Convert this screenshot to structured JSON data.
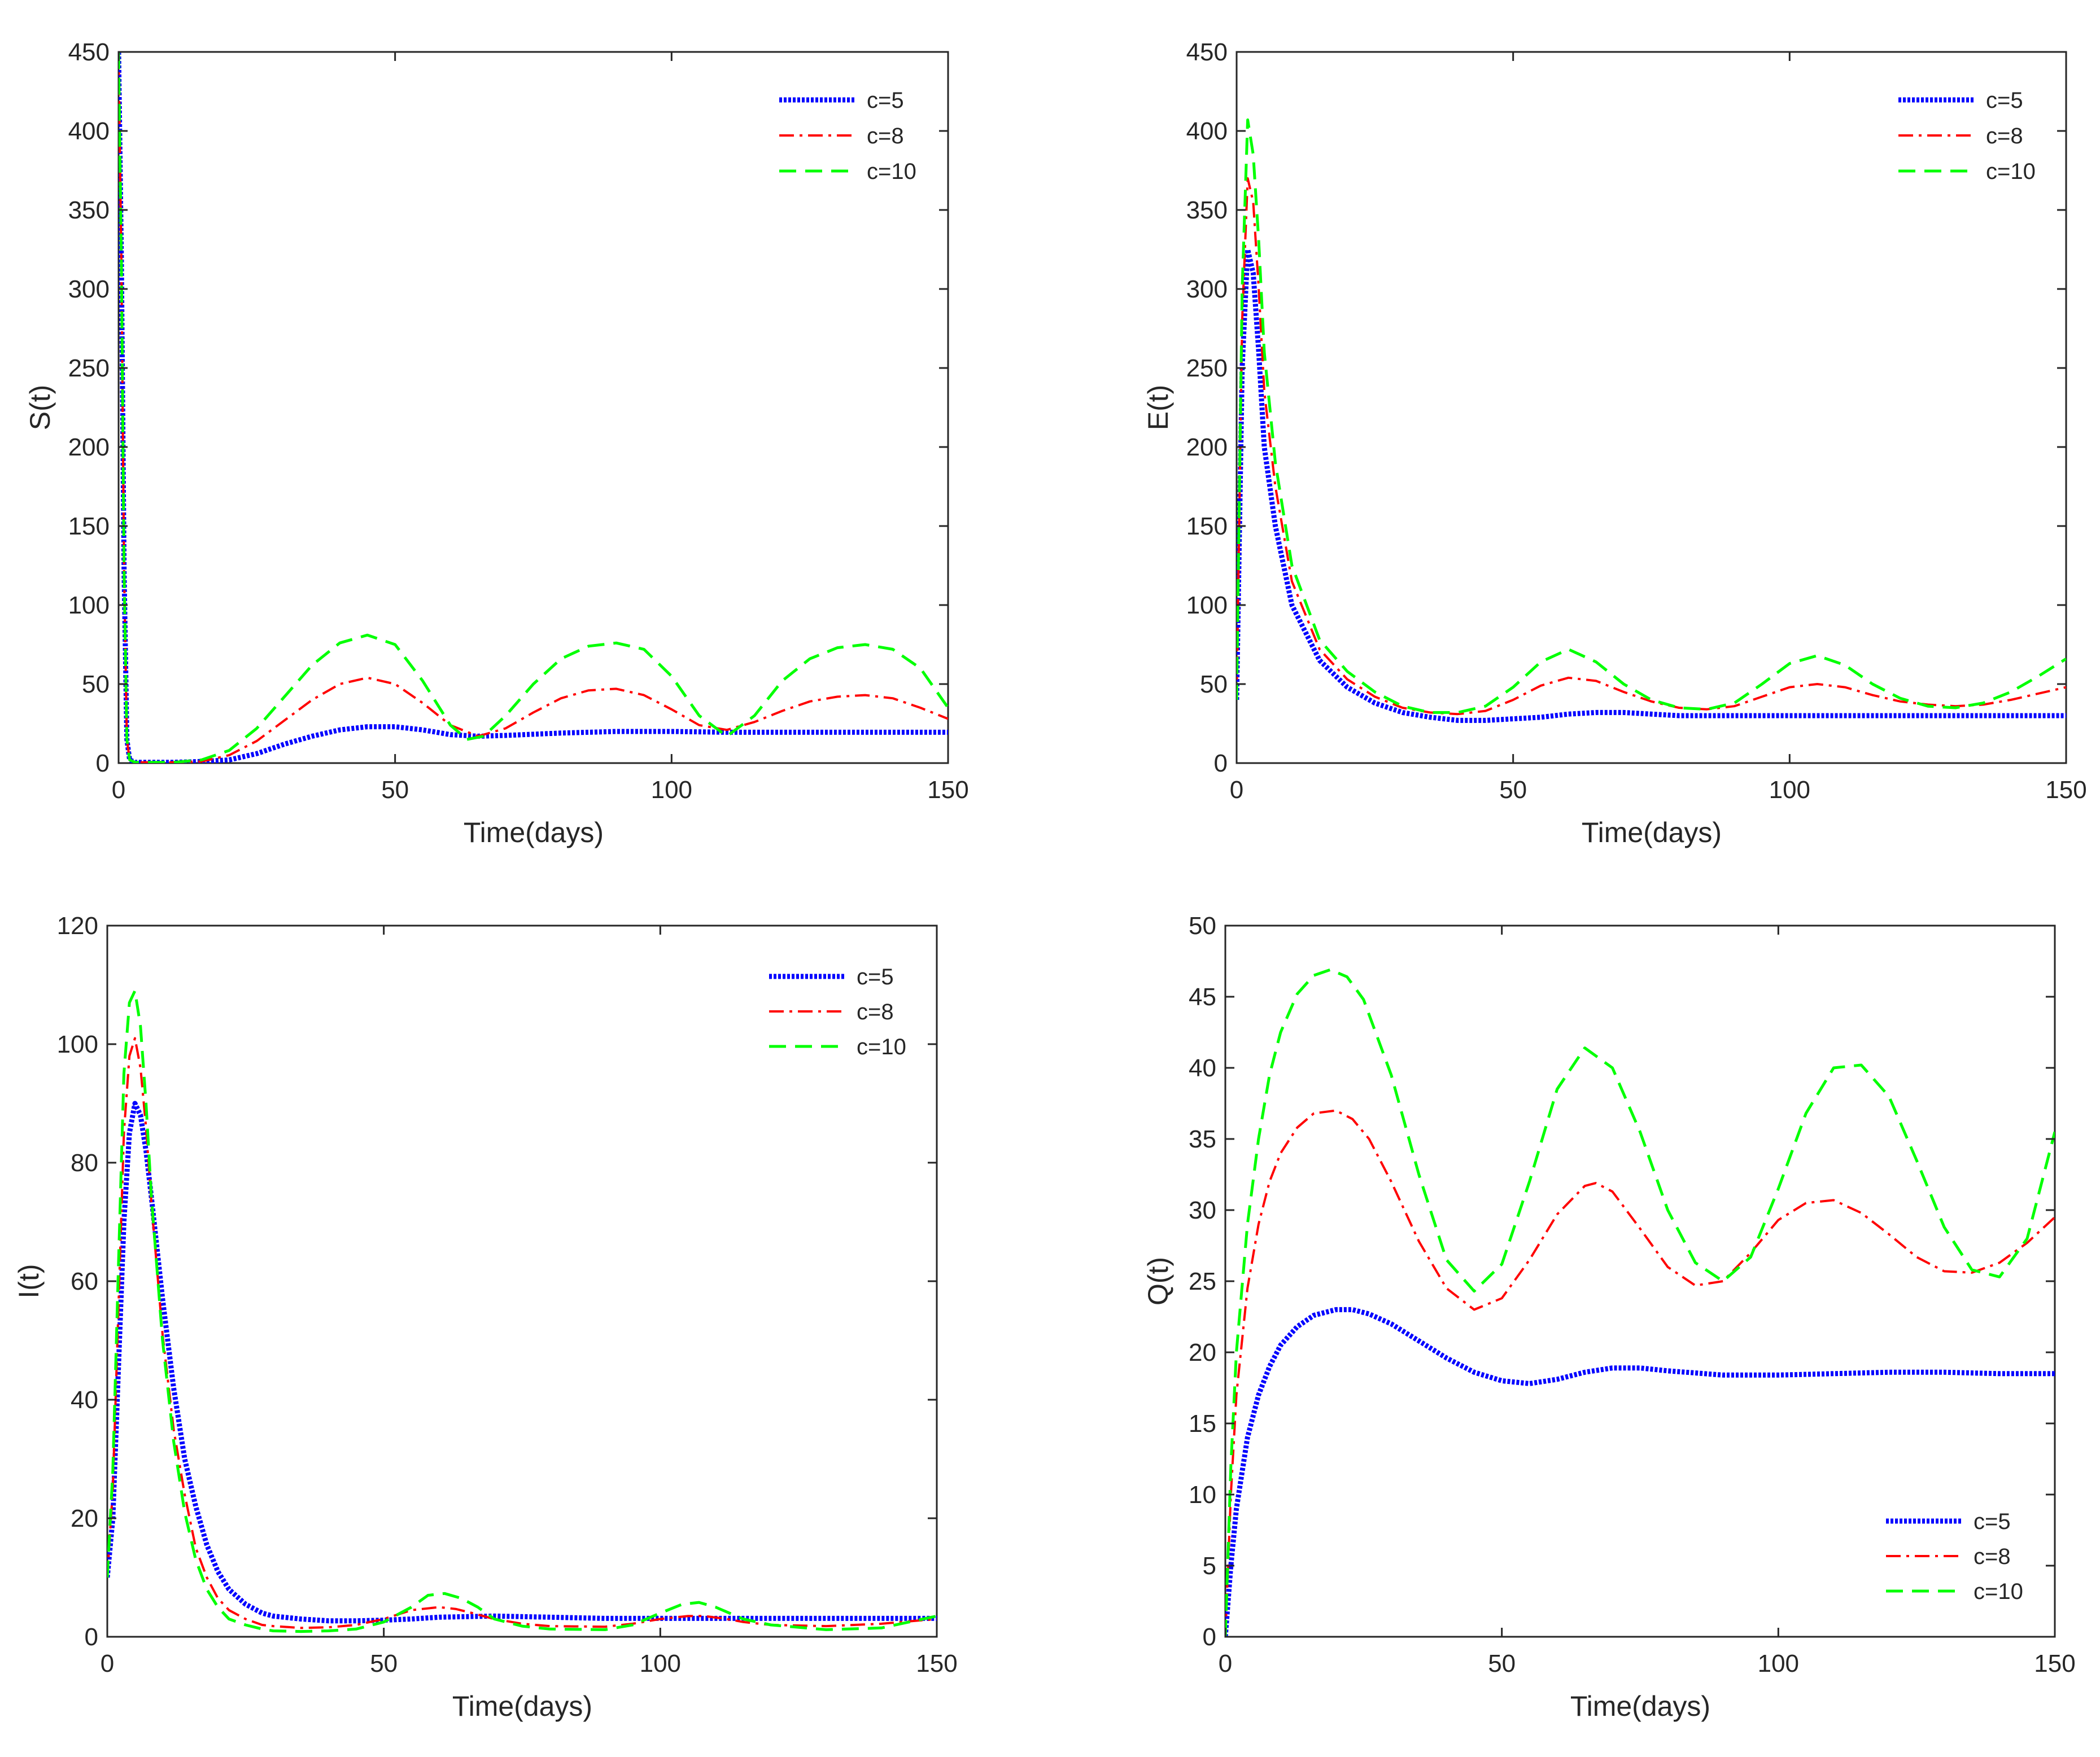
{
  "chart_data": [
    {
      "type": "line",
      "panel": "top-left",
      "xlabel": "Time(days)",
      "ylabel": "S(t)",
      "xlim": [
        0,
        150
      ],
      "ylim": [
        0,
        450
      ],
      "xticks": [
        0,
        50,
        100,
        150
      ],
      "yticks": [
        0,
        50,
        100,
        150,
        200,
        250,
        300,
        350,
        400,
        450
      ],
      "legend_position": "top-right",
      "series": [
        {
          "name": "c=5",
          "color": "#0000ff",
          "style": "dotted",
          "x": [
            0,
            0.5,
            1,
            1.5,
            2,
            3,
            5,
            10,
            15,
            20,
            25,
            30,
            35,
            40,
            45,
            50,
            55,
            60,
            65,
            70,
            80,
            90,
            100,
            110,
            120,
            130,
            140,
            150
          ],
          "y": [
            450,
            320,
            120,
            15,
            2,
            0.5,
            0.5,
            0.5,
            1,
            2,
            6,
            12,
            17,
            21,
            23,
            23,
            21,
            18,
            17,
            17.5,
            19,
            20,
            20,
            19.5,
            19.5,
            19.5,
            19.5,
            19.5
          ]
        },
        {
          "name": "c=8",
          "color": "#ff0000",
          "style": "dashdot",
          "x": [
            0,
            0.5,
            1,
            1.5,
            2,
            3,
            5,
            10,
            15,
            20,
            25,
            30,
            35,
            40,
            45,
            50,
            55,
            60,
            65,
            70,
            75,
            80,
            85,
            90,
            95,
            100,
            105,
            110,
            115,
            120,
            125,
            130,
            135,
            140,
            145,
            150
          ],
          "y": [
            450,
            320,
            120,
            15,
            2,
            0.5,
            0.5,
            0.5,
            1,
            5,
            14,
            27,
            40,
            50,
            54,
            50,
            38,
            24,
            17,
            22,
            32,
            41,
            46,
            47,
            43,
            34,
            24,
            21,
            26,
            33,
            39,
            42,
            43,
            41,
            35,
            28
          ]
        },
        {
          "name": "c=10",
          "color": "#00ff00",
          "style": "dashed",
          "x": [
            0,
            0.5,
            1,
            1.5,
            2,
            3,
            5,
            10,
            15,
            20,
            25,
            30,
            35,
            40,
            45,
            50,
            55,
            60,
            63,
            66,
            70,
            75,
            80,
            85,
            90,
            95,
            100,
            105,
            110,
            115,
            120,
            125,
            130,
            135,
            140,
            145,
            150
          ],
          "y": [
            450,
            320,
            120,
            15,
            2,
            0.5,
            0.5,
            0.5,
            2,
            8,
            22,
            42,
            62,
            76,
            81,
            75,
            52,
            24,
            15,
            17,
            30,
            50,
            66,
            74,
            76,
            72,
            55,
            30,
            17,
            30,
            52,
            66,
            73,
            75,
            72,
            60,
            35
          ]
        }
      ]
    },
    {
      "type": "line",
      "panel": "top-right",
      "xlabel": "Time(days)",
      "ylabel": "E(t)",
      "xlim": [
        0,
        150
      ],
      "ylim": [
        0,
        450
      ],
      "xticks": [
        0,
        50,
        100,
        150
      ],
      "yticks": [
        0,
        50,
        100,
        150,
        200,
        250,
        300,
        350,
        400,
        450
      ],
      "legend_position": "top-right",
      "series": [
        {
          "name": "c=5",
          "color": "#0000ff",
          "style": "dotted",
          "x": [
            0,
            1,
            2,
            3,
            4,
            5,
            7,
            10,
            15,
            20,
            25,
            30,
            35,
            40,
            45,
            50,
            55,
            60,
            65,
            70,
            80,
            90,
            100,
            110,
            120,
            130,
            140,
            150
          ],
          "y": [
            40,
            250,
            325,
            310,
            260,
            200,
            150,
            100,
            65,
            48,
            38,
            32,
            29,
            27,
            27,
            28,
            29,
            31,
            32,
            32,
            30,
            30,
            30,
            30,
            30,
            30,
            30,
            30
          ]
        },
        {
          "name": "c=8",
          "color": "#ff0000",
          "style": "dashdot",
          "x": [
            0,
            1,
            2,
            3,
            4,
            5,
            7,
            10,
            15,
            20,
            25,
            30,
            35,
            40,
            45,
            50,
            55,
            60,
            65,
            70,
            75,
            80,
            85,
            90,
            95,
            100,
            105,
            110,
            115,
            120,
            125,
            130,
            135,
            140,
            145,
            150
          ],
          "y": [
            40,
            280,
            370,
            355,
            300,
            235,
            175,
            115,
            72,
            53,
            42,
            35,
            32,
            31,
            33,
            40,
            49,
            54,
            52,
            45,
            39,
            35,
            34,
            36,
            42,
            48,
            50,
            48,
            43,
            39,
            37,
            36,
            37,
            40,
            44,
            48
          ]
        },
        {
          "name": "c=10",
          "color": "#00ff00",
          "style": "dashed",
          "x": [
            0,
            1,
            2,
            3,
            4,
            5,
            7,
            10,
            15,
            20,
            25,
            30,
            35,
            40,
            45,
            50,
            55,
            60,
            65,
            70,
            75,
            80,
            85,
            90,
            95,
            100,
            105,
            110,
            115,
            120,
            125,
            130,
            135,
            140,
            145,
            150
          ],
          "y": [
            40,
            300,
            407,
            385,
            330,
            260,
            190,
            125,
            78,
            58,
            45,
            36,
            32,
            32,
            36,
            48,
            64,
            72,
            64,
            50,
            40,
            35,
            34,
            38,
            50,
            63,
            68,
            62,
            50,
            41,
            36,
            35,
            38,
            45,
            55,
            66
          ]
        }
      ]
    },
    {
      "type": "line",
      "panel": "bottom-left",
      "xlabel": "Time(days)",
      "ylabel": "I(t)",
      "xlim": [
        0,
        150
      ],
      "ylim": [
        0,
        120
      ],
      "xticks": [
        0,
        50,
        100,
        150
      ],
      "yticks": [
        0,
        20,
        40,
        60,
        80,
        100,
        120
      ],
      "legend_position": "top-right",
      "series": [
        {
          "name": "c=5",
          "color": "#0000ff",
          "style": "dotted",
          "x": [
            0,
            1,
            2,
            3,
            4,
            5,
            6,
            7,
            8,
            10,
            12,
            14,
            16,
            18,
            20,
            22,
            25,
            28,
            30,
            35,
            40,
            45,
            50,
            55,
            60,
            70,
            80,
            90,
            100,
            110,
            120,
            130,
            140,
            150
          ],
          "y": [
            10,
            20,
            45,
            70,
            85,
            90,
            88,
            82,
            74,
            57,
            42,
            30,
            22,
            15.5,
            11,
            8,
            5.5,
            4,
            3.5,
            3,
            2.7,
            2.7,
            2.8,
            3,
            3.3,
            3.5,
            3.3,
            3.1,
            3.1,
            3.1,
            3.1,
            3.1,
            3.1,
            3.1
          ]
        },
        {
          "name": "c=8",
          "color": "#ff0000",
          "style": "dashdot",
          "x": [
            0,
            1,
            2,
            3,
            4,
            5,
            6,
            7,
            8,
            10,
            12,
            14,
            16,
            18,
            20,
            22,
            25,
            28,
            30,
            35,
            40,
            45,
            50,
            55,
            60,
            63,
            66,
            70,
            75,
            80,
            90,
            95,
            100,
            105,
            108,
            112,
            115,
            120,
            130,
            140,
            150
          ],
          "y": [
            10,
            25,
            55,
            85,
            98,
            101,
            96,
            86,
            73,
            51,
            35,
            24,
            15,
            10,
            6.5,
            4.5,
            3,
            2,
            1.8,
            1.5,
            1.6,
            2,
            3,
            4.5,
            5,
            4.7,
            4,
            3,
            2.2,
            1.8,
            1.7,
            2.2,
            3,
            3.5,
            3.5,
            3,
            2.5,
            2,
            1.8,
            2.2,
            3
          ]
        },
        {
          "name": "c=10",
          "color": "#00ff00",
          "style": "dashed",
          "x": [
            0,
            1,
            2,
            3,
            4,
            5,
            6,
            7,
            8,
            10,
            12,
            14,
            16,
            18,
            20,
            22,
            25,
            28,
            30,
            35,
            40,
            45,
            50,
            55,
            58,
            61,
            64,
            67,
            70,
            75,
            80,
            90,
            95,
            100,
            104,
            107,
            110,
            115,
            120,
            130,
            140,
            150
          ],
          "y": [
            10,
            28,
            62,
            95,
            107,
            109,
            103,
            90,
            74,
            50,
            33,
            21,
            13,
            8,
            5,
            3,
            2,
            1.3,
            1,
            0.9,
            1,
            1.3,
            2.5,
            5,
            7,
            7.3,
            6.5,
            5,
            3,
            1.8,
            1.3,
            1.2,
            2,
            4,
            5.5,
            5.8,
            5,
            3,
            2,
            1.2,
            1.5,
            3.5
          ]
        }
      ]
    },
    {
      "type": "line",
      "panel": "bottom-right",
      "xlabel": "Time(days)",
      "ylabel": "Q(t)",
      "xlim": [
        0,
        150
      ],
      "ylim": [
        0,
        50
      ],
      "xticks": [
        0,
        50,
        100,
        150
      ],
      "yticks": [
        0,
        5,
        10,
        15,
        20,
        25,
        30,
        35,
        40,
        45,
        50
      ],
      "legend_position": "bottom-right",
      "series": [
        {
          "name": "c=5",
          "color": "#0000ff",
          "style": "dotted",
          "x": [
            0,
            1,
            2,
            4,
            6,
            8,
            10,
            13,
            16,
            20,
            23,
            26,
            30,
            35,
            40,
            45,
            50,
            55,
            60,
            65,
            70,
            75,
            80,
            90,
            100,
            110,
            120,
            130,
            140,
            150
          ],
          "y": [
            0,
            5,
            9,
            14,
            17,
            19,
            20.5,
            21.8,
            22.6,
            23,
            23,
            22.7,
            22,
            20.8,
            19.6,
            18.6,
            18,
            17.8,
            18.1,
            18.6,
            18.9,
            18.9,
            18.7,
            18.4,
            18.4,
            18.5,
            18.6,
            18.6,
            18.5,
            18.5
          ]
        },
        {
          "name": "c=8",
          "color": "#ff0000",
          "style": "dashdot",
          "x": [
            0,
            1,
            2,
            4,
            6,
            8,
            10,
            13,
            16,
            20,
            23,
            26,
            30,
            35,
            40,
            45,
            50,
            55,
            60,
            65,
            67,
            70,
            75,
            80,
            85,
            90,
            95,
            100,
            105,
            110,
            115,
            120,
            125,
            130,
            135,
            140,
            145,
            150
          ],
          "y": [
            0,
            10,
            17,
            24.5,
            29,
            32,
            34,
            35.8,
            36.8,
            37,
            36.4,
            35,
            32,
            27.8,
            24.5,
            23,
            23.8,
            26.5,
            29.7,
            31.7,
            31.9,
            31.3,
            28.7,
            26,
            24.7,
            25,
            27,
            29.3,
            30.5,
            30.7,
            29.8,
            28.3,
            26.7,
            25.7,
            25.6,
            26.3,
            27.7,
            29.5
          ]
        },
        {
          "name": "c=10",
          "color": "#00ff00",
          "style": "dashed",
          "x": [
            0,
            1,
            2,
            4,
            6,
            8,
            10,
            13,
            16,
            19,
            22,
            25,
            30,
            35,
            40,
            45,
            50,
            55,
            60,
            65,
            70,
            75,
            80,
            85,
            90,
            95,
            100,
            105,
            110,
            115,
            120,
            125,
            130,
            135,
            140,
            145,
            150
          ],
          "y": [
            0,
            12,
            20,
            29,
            35,
            39.5,
            42.5,
            45.2,
            46.5,
            46.9,
            46.4,
            44.8,
            39.5,
            32.5,
            26.5,
            24.3,
            26.2,
            32,
            38.5,
            41.4,
            40,
            35.5,
            30,
            26.3,
            25,
            26.7,
            31.5,
            36.8,
            40,
            40.2,
            38,
            33.5,
            28.8,
            25.8,
            25.3,
            28,
            35.5
          ]
        }
      ]
    }
  ]
}
